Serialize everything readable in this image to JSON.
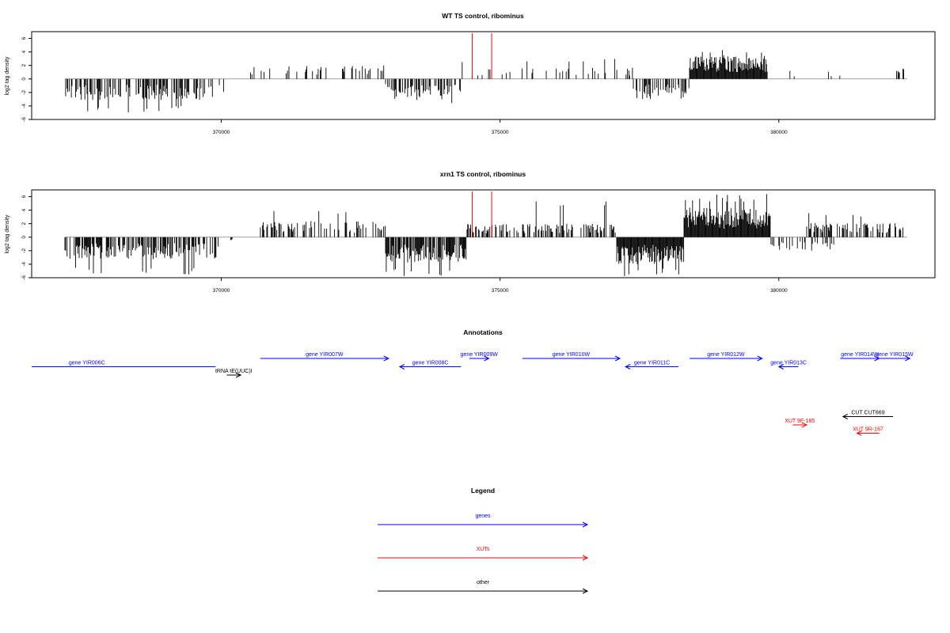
{
  "colors": {
    "genes": "#0000ff",
    "xuts": "#ff0000",
    "other": "#000000",
    "marker": "#ff0000",
    "bars": "#000000",
    "baseline": "#808080"
  },
  "chart_data": [
    {
      "type": "bar",
      "title": "WT TS control, ribominus",
      "xlabel": "",
      "ylabel": "log2 tag density",
      "xlim": [
        366600,
        382800
      ],
      "ylim": [
        -6,
        7
      ],
      "yticks": [
        -6,
        -4,
        -2,
        0,
        2,
        4,
        6
      ],
      "xticks": [
        370000,
        375000,
        380000
      ],
      "xtick_labels": [
        "370000",
        "375000",
        "380000"
      ],
      "marker_x": [
        374500,
        374850
      ],
      "segments": [
        {
          "from": 367200,
          "to": 369850,
          "sign": -1,
          "amp": 2.5,
          "amp_max": 5.0,
          "density": 0.45
        },
        {
          "from": 369850,
          "to": 370250,
          "sign": -1,
          "amp": 1.8,
          "amp_max": 2.4,
          "density": 0.04
        },
        {
          "from": 370450,
          "to": 372950,
          "sign": 1,
          "amp": 1.6,
          "amp_max": 3.0,
          "density": 0.15
        },
        {
          "from": 372950,
          "to": 374300,
          "sign": -1,
          "amp": 2.2,
          "amp_max": 3.6,
          "density": 0.45
        },
        {
          "from": 374300,
          "to": 377400,
          "sign": 1,
          "amp": 1.4,
          "amp_max": 3.0,
          "density": 0.14
        },
        {
          "from": 377400,
          "to": 378400,
          "sign": -1,
          "amp": 2.3,
          "amp_max": 3.5,
          "density": 0.55
        },
        {
          "from": 378400,
          "to": 379800,
          "sign": 1,
          "amp": 2.8,
          "amp_max": 4.8,
          "density": 1.0
        },
        {
          "from": 379800,
          "to": 382200,
          "sign": 1,
          "amp": 1.0,
          "amp_max": 2.8,
          "density": 0.04
        },
        {
          "from": 382050,
          "to": 382300,
          "sign": 1,
          "amp": 1.5,
          "amp_max": 2.2,
          "density": 0.2
        }
      ]
    },
    {
      "type": "bar",
      "title": "xrn1 TS control, ribominus",
      "xlabel": "",
      "ylabel": "log2 tag density",
      "xlim": [
        366600,
        382800
      ],
      "ylim": [
        -6,
        7
      ],
      "yticks": [
        -6,
        -4,
        -2,
        0,
        2,
        4,
        6
      ],
      "xticks": [
        370000,
        375000,
        380000
      ],
      "xtick_labels": [
        "370000",
        "375000",
        "380000"
      ],
      "marker_x": [
        374500,
        374850
      ],
      "segments": [
        {
          "from": 367200,
          "to": 369950,
          "sign": -1,
          "amp": 2.6,
          "amp_max": 5.6,
          "density": 0.65
        },
        {
          "from": 370100,
          "to": 370200,
          "sign": -1,
          "amp": 0.5,
          "amp_max": 0.6,
          "density": 0.2
        },
        {
          "from": 370700,
          "to": 372950,
          "sign": 1,
          "amp": 1.9,
          "amp_max": 4.1,
          "density": 0.4
        },
        {
          "from": 372950,
          "to": 374400,
          "sign": -1,
          "amp": 3.0,
          "amp_max": 5.8,
          "density": 0.75
        },
        {
          "from": 374400,
          "to": 377100,
          "sign": 1,
          "amp": 1.6,
          "amp_max": 5.4,
          "density": 0.45
        },
        {
          "from": 377100,
          "to": 378300,
          "sign": -1,
          "amp": 3.2,
          "amp_max": 5.8,
          "density": 1.0
        },
        {
          "from": 378300,
          "to": 379850,
          "sign": 1,
          "amp": 3.5,
          "amp_max": 6.4,
          "density": 1.0
        },
        {
          "from": 379850,
          "to": 381000,
          "sign": -1,
          "amp": 1.6,
          "amp_max": 4.0,
          "density": 0.3
        },
        {
          "from": 380500,
          "to": 382300,
          "sign": 1,
          "amp": 1.7,
          "amp_max": 3.8,
          "density": 0.45
        }
      ]
    }
  ],
  "annotations": {
    "title": "Annotations",
    "features": [
      {
        "label": "gene YIR006C",
        "type": "genes",
        "x1": 366600,
        "x2": 369900,
        "dir": "none",
        "row": 1
      },
      {
        "label": "tRNA tE(UUC)I",
        "type": "other",
        "x1": 370100,
        "x2": 370350,
        "dir": "right",
        "row": 2
      },
      {
        "label": "gene YIR007W",
        "type": "genes",
        "x1": 370700,
        "x2": 373000,
        "dir": "right",
        "row": 0
      },
      {
        "label": "gene YIR008C",
        "type": "genes",
        "x1": 373200,
        "x2": 374300,
        "dir": "left",
        "row": 1
      },
      {
        "label": "gene YIR009W",
        "type": "genes",
        "x1": 374450,
        "x2": 374800,
        "dir": "right",
        "row": 0
      },
      {
        "label": "gene YIR010W",
        "type": "genes",
        "x1": 375400,
        "x2": 377150,
        "dir": "right",
        "row": 0
      },
      {
        "label": "gene YIR011C",
        "type": "genes",
        "x1": 377250,
        "x2": 378200,
        "dir": "left",
        "row": 1
      },
      {
        "label": "gene YIR012W",
        "type": "genes",
        "x1": 378400,
        "x2": 379700,
        "dir": "right",
        "row": 0
      },
      {
        "label": "gene YIR013C",
        "type": "genes",
        "x1": 380000,
        "x2": 380350,
        "dir": "left",
        "row": 1
      },
      {
        "label": "gene YIR014W",
        "type": "genes",
        "x1": 381100,
        "x2": 381800,
        "dir": "right",
        "row": 0
      },
      {
        "label": "gene YIR015W",
        "type": "genes",
        "x1": 381800,
        "x2": 382350,
        "dir": "right",
        "row": 0
      },
      {
        "label": "CUT CUT669",
        "type": "other",
        "x1": 381150,
        "x2": 382050,
        "dir": "left",
        "row": 7
      },
      {
        "label": "XUT 9F-185",
        "type": "xuts",
        "x1": 380250,
        "x2": 380500,
        "dir": "right",
        "row": 8
      },
      {
        "label": "XUT 9R-167",
        "type": "xuts",
        "x1": 381400,
        "x2": 381800,
        "dir": "left",
        "row": 9
      }
    ]
  },
  "legend": {
    "title": "Legend",
    "items": [
      {
        "label": "genes",
        "type": "genes"
      },
      {
        "label": "XUTs",
        "type": "xuts"
      },
      {
        "label": "other",
        "type": "other"
      }
    ]
  }
}
